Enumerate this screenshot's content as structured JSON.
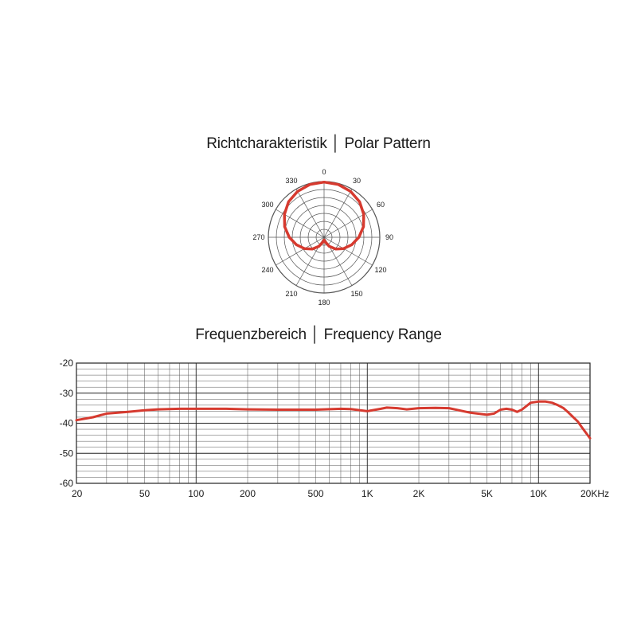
{
  "colors": {
    "curve": "#d63a2f",
    "grid": "#555555",
    "axis": "#222222"
  },
  "polar_title": "Richtcharakteristik │ Polar Pattern",
  "freq_title": "Frequenzbereich │ Frequency Range",
  "chart_data": [
    {
      "type": "polar",
      "title": "Richtcharakteristik │ Polar Pattern",
      "angle_labels": [
        "0",
        "30",
        "60",
        "90",
        "120",
        "150",
        "180",
        "210",
        "240",
        "270",
        "300",
        "330"
      ],
      "angles_deg": [
        0,
        30,
        60,
        90,
        120,
        150,
        180,
        210,
        240,
        270,
        300,
        330
      ],
      "grid": true,
      "rings": 7,
      "pattern": "cardioid",
      "series": [
        {
          "theta_deg": [
            0,
            15,
            30,
            45,
            60,
            75,
            90,
            105,
            120,
            135,
            150,
            165,
            180,
            195,
            210,
            225,
            240,
            255,
            270,
            285,
            300,
            315,
            330,
            345,
            360
          ],
          "r": [
            1.0,
            0.99,
            0.96,
            0.91,
            0.83,
            0.74,
            0.63,
            0.52,
            0.41,
            0.3,
            0.19,
            0.09,
            0.05,
            0.09,
            0.19,
            0.3,
            0.41,
            0.52,
            0.63,
            0.74,
            0.83,
            0.91,
            0.96,
            0.99,
            1.0
          ]
        }
      ]
    },
    {
      "type": "line",
      "title": "Frequenzbereich │ Frequency Range",
      "x_scale": "log",
      "xlim": [
        20,
        20000
      ],
      "ylim": [
        -60,
        -20
      ],
      "grid": true,
      "x_tick_values": [
        20,
        50,
        100,
        200,
        500,
        1000,
        2000,
        5000,
        10000,
        20000
      ],
      "x_tick_labels": [
        "20",
        "50",
        "100",
        "200",
        "500",
        "1K",
        "2K",
        "5K",
        "10K",
        "20KHz"
      ],
      "y_tick_values": [
        -20,
        -30,
        -40,
        -50,
        -60
      ],
      "y_tick_labels": [
        "-20",
        "-30",
        "-40",
        "-50",
        "-60"
      ],
      "series": [
        {
          "x": [
            20,
            25,
            30,
            40,
            50,
            60,
            80,
            100,
            150,
            200,
            300,
            500,
            700,
            800,
            1000,
            1200,
            1300,
            1500,
            1700,
            2000,
            2500,
            3000,
            4000,
            5000,
            5500,
            6000,
            6500,
            7000,
            7500,
            8000,
            9000,
            10000,
            11000,
            12000,
            13000,
            14000,
            15000,
            17000,
            18000,
            20000
          ],
          "y": [
            -39,
            -38,
            -36.8,
            -36.2,
            -35.7,
            -35.4,
            -35.2,
            -35.2,
            -35.2,
            -35.4,
            -35.5,
            -35.5,
            -35.2,
            -35.3,
            -36,
            -35.2,
            -34.8,
            -35,
            -35.4,
            -35,
            -34.9,
            -35,
            -36.5,
            -37.2,
            -36.8,
            -35.5,
            -35.2,
            -35.5,
            -36.2,
            -35.5,
            -33.2,
            -32.8,
            -32.8,
            -33.2,
            -34,
            -35,
            -36.5,
            -39.5,
            -41.5,
            -45
          ]
        }
      ]
    }
  ]
}
